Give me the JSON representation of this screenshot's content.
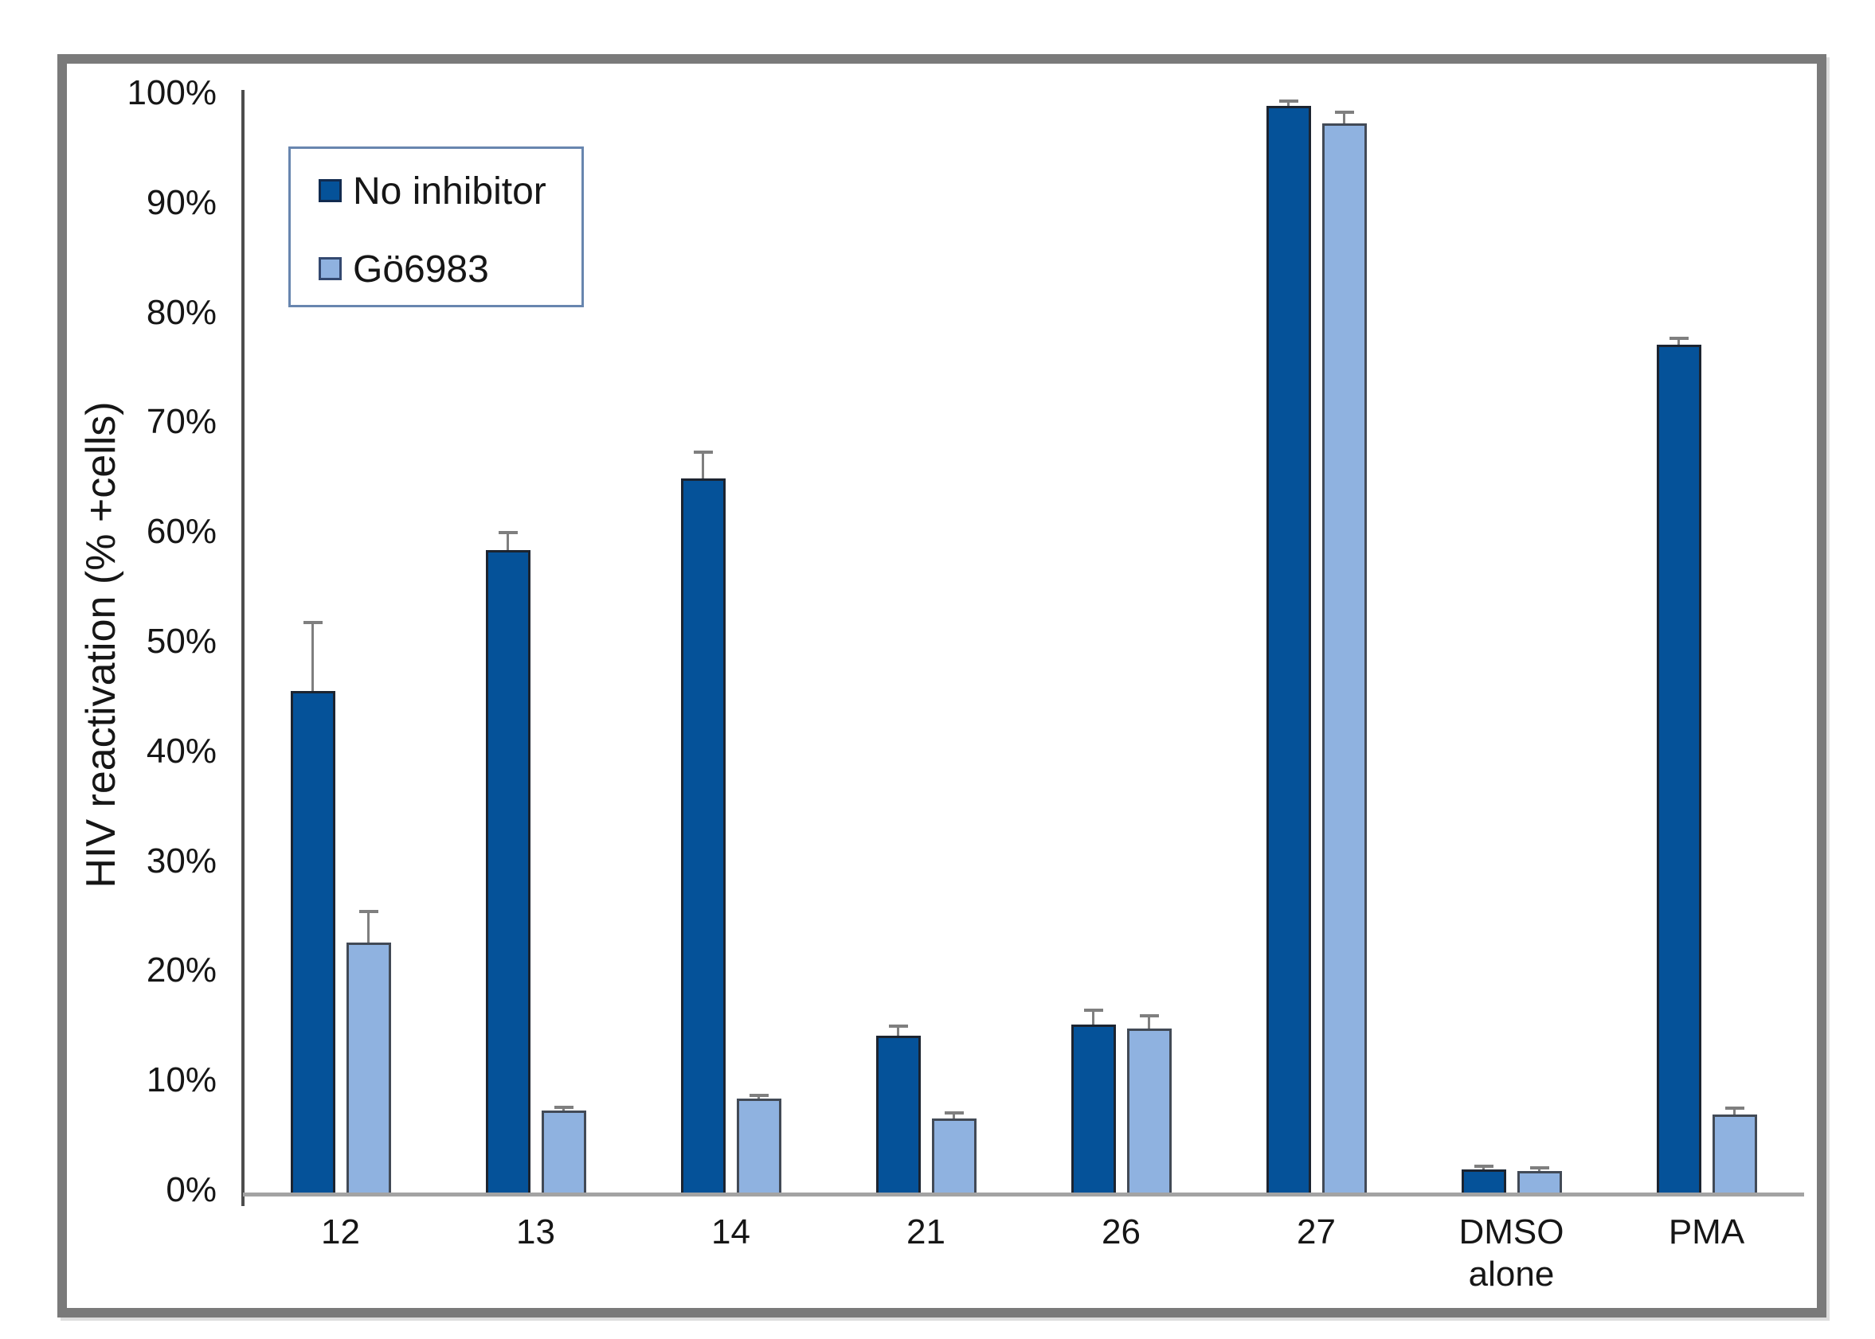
{
  "figure": {
    "ylabel": "HIV reactivation (% +cells)",
    "colors": {
      "dark_series_fill": "#055299",
      "dark_series_border": "#1c2430",
      "light_series_fill": "#8fb2e0",
      "light_series_border": "#424a56",
      "error_bar": "#7f7f7f",
      "legend_border": "#6886af",
      "frame_border": "#7a7a7a",
      "axis_line": "#4d4d4d",
      "baseline": "#a3a3a3",
      "text": "#161616"
    }
  },
  "chart_data": {
    "type": "bar",
    "title": "",
    "xlabel": "",
    "ylabel": "HIV reactivation (% +cells)",
    "ylim": [
      0,
      100
    ],
    "ytick_step": 10,
    "ytick_labels": [
      "0%",
      "10%",
      "20%",
      "30%",
      "40%",
      "50%",
      "60%",
      "70%",
      "80%",
      "90%",
      "100%"
    ],
    "grid": false,
    "legend_position": "upper left inside plot",
    "categories": [
      "12",
      "13",
      "14",
      "21",
      "26",
      "27",
      "DMSO alone",
      "PMA"
    ],
    "categories_lines": [
      [
        "12"
      ],
      [
        "13"
      ],
      [
        "14"
      ],
      [
        "21"
      ],
      [
        "26"
      ],
      [
        "27"
      ],
      [
        "DMSO",
        "alone"
      ],
      [
        "PMA"
      ]
    ],
    "series": [
      {
        "name": "No inhibitor",
        "fill": "#055299",
        "border": "#1c2430",
        "values": [
          45.9,
          58.8,
          65.3,
          14.5,
          15.5,
          99.3,
          2.3,
          77.5
        ],
        "errors_plus": [
          6.3,
          1.6,
          2.4,
          0.9,
          1.3,
          0.4,
          0.3,
          0.6
        ]
      },
      {
        "name": "Gö6983",
        "fill": "#8fb2e0",
        "border": "#424a56",
        "values": [
          23.0,
          7.7,
          8.8,
          7.0,
          15.2,
          97.7,
          2.2,
          7.3
        ],
        "errors_plus": [
          2.8,
          0.3,
          0.3,
          0.5,
          1.1,
          1.0,
          0.3,
          0.6
        ]
      }
    ]
  }
}
